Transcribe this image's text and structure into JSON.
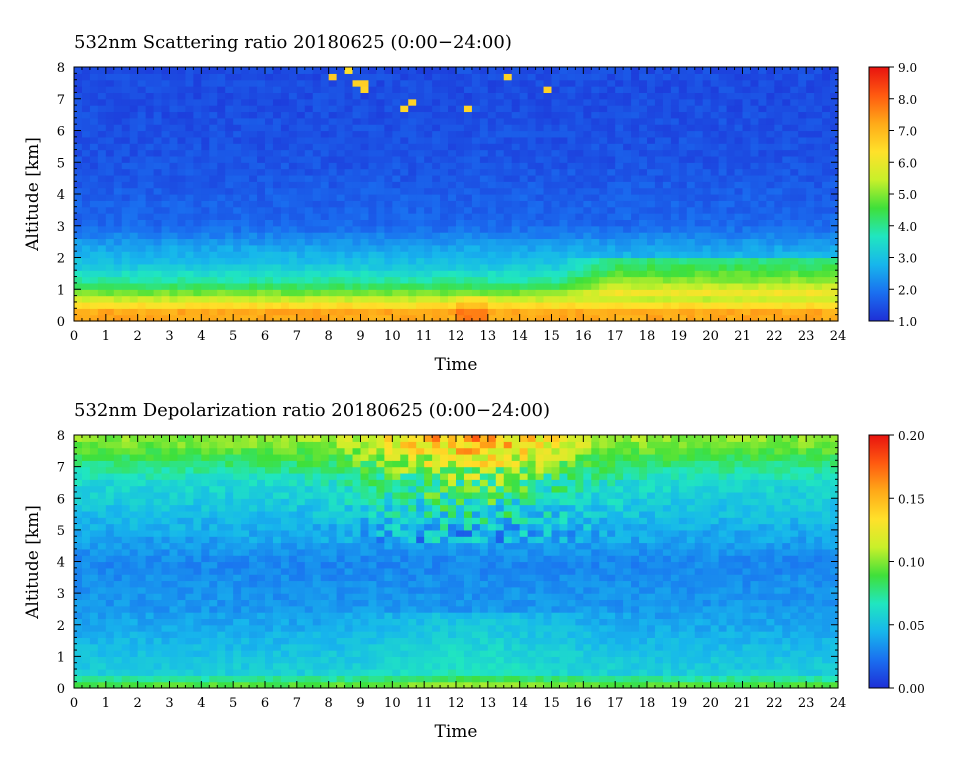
{
  "colors": {
    "colormap": [
      "#1e2fd6",
      "#1a6ff0",
      "#17b6ec",
      "#20e6c0",
      "#3fe03a",
      "#c8f02a",
      "#ffe12a",
      "#ffaa18",
      "#ff5a10",
      "#e8130f"
    ],
    "axis": "#000000",
    "background": "#ffffff"
  },
  "chart_data": [
    {
      "type": "heatmap",
      "title": "532nm Scattering ratio  20180625 (0:00−24:00)",
      "xlabel": "Time",
      "ylabel": "Altitude [km]",
      "xlim": [
        0,
        24
      ],
      "ylim": [
        0,
        8
      ],
      "x_ticks": [
        "0",
        "1",
        "2",
        "3",
        "4",
        "5",
        "6",
        "7",
        "8",
        "9",
        "10",
        "11",
        "12",
        "13",
        "14",
        "15",
        "16",
        "17",
        "18",
        "19",
        "20",
        "21",
        "22",
        "23",
        "24"
      ],
      "y_ticks": [
        "0",
        "1",
        "2",
        "3",
        "4",
        "5",
        "6",
        "7",
        "8"
      ],
      "colorbar": {
        "range": [
          1.0,
          9.0
        ],
        "ticks": [
          "1.0",
          "2.0",
          "3.0",
          "4.0",
          "5.0",
          "6.0",
          "7.0",
          "8.0",
          "9.0"
        ]
      },
      "profile": [
        {
          "altitude_km": 0.3,
          "value": 7.2
        },
        {
          "altitude_km": 0.7,
          "value": 5.5
        },
        {
          "altitude_km": 1.2,
          "value": 4.0
        },
        {
          "altitude_km": 1.8,
          "value": 3.0
        },
        {
          "altitude_km": 2.3,
          "value": 2.6
        },
        {
          "altitude_km": 3.0,
          "value": 1.8
        },
        {
          "altitude_km": 5.0,
          "value": 1.5
        },
        {
          "altitude_km": 7.0,
          "value": 1.4
        }
      ]
    },
    {
      "type": "heatmap",
      "title": "532nm Depolarization ratio  20180625 (0:00−24:00)",
      "xlabel": "Time",
      "ylabel": "Altitude [km]",
      "xlim": [
        0,
        24
      ],
      "ylim": [
        0,
        8
      ],
      "x_ticks": [
        "0",
        "1",
        "2",
        "3",
        "4",
        "5",
        "6",
        "7",
        "8",
        "9",
        "10",
        "11",
        "12",
        "13",
        "14",
        "15",
        "16",
        "17",
        "18",
        "19",
        "20",
        "21",
        "22",
        "23",
        "24"
      ],
      "y_ticks": [
        "0",
        "1",
        "2",
        "3",
        "4",
        "5",
        "6",
        "7",
        "8"
      ],
      "colorbar": {
        "range": [
          0.0,
          0.2
        ],
        "ticks": [
          "0.00",
          "0.05",
          "0.10",
          "0.15",
          "0.20"
        ]
      },
      "profile": [
        {
          "altitude_km": 0.1,
          "value": 0.09
        },
        {
          "altitude_km": 0.5,
          "value": 0.055
        },
        {
          "altitude_km": 1.5,
          "value": 0.045
        },
        {
          "altitude_km": 2.5,
          "value": 0.035
        },
        {
          "altitude_km": 4.0,
          "value": 0.03
        },
        {
          "altitude_km": 6.5,
          "value": 0.06
        },
        {
          "altitude_km": 7.8,
          "value": 0.1
        }
      ]
    }
  ]
}
